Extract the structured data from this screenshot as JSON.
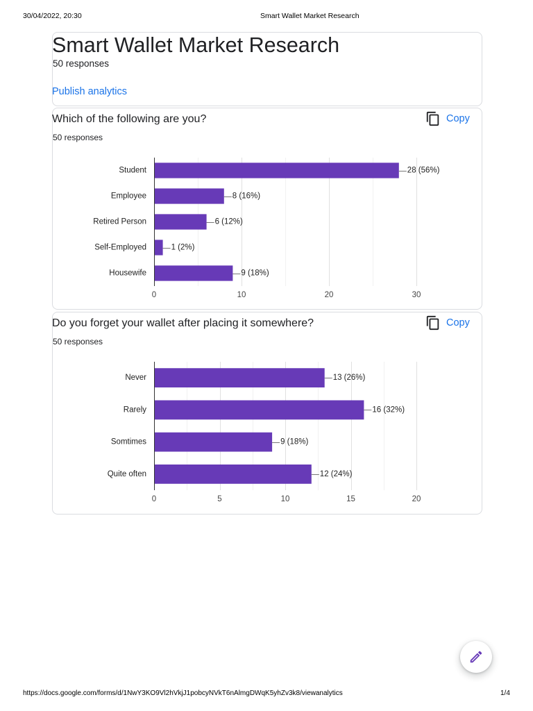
{
  "print_header": {
    "datetime": "30/04/2022, 20:30",
    "title": "Smart Wallet Market Research"
  },
  "summary": {
    "title": "Smart Wallet Market Research",
    "responses": "50 responses",
    "publish_label": "Publish analytics"
  },
  "questions": [
    {
      "responses": "50 responses",
      "copy_label": "Copy",
      "copy_icon": "copy-icon"
    },
    {
      "responses": "50 responses",
      "copy_label": "Copy",
      "copy_icon": "copy-icon"
    }
  ],
  "chart_data": [
    {
      "type": "bar",
      "orientation": "horizontal",
      "title": "Which of the following are you?",
      "categories": [
        "Student",
        "Employee",
        "Retired Person",
        "Self-Employed",
        "Housewife"
      ],
      "values": [
        28,
        8,
        6,
        1,
        9
      ],
      "data_labels": [
        "28 (56%)",
        "8 (16%)",
        "6 (12%)",
        "1 (2%)",
        "9 (18%)"
      ],
      "xlim": [
        0,
        30
      ],
      "xticks": [
        0,
        10,
        20,
        30
      ],
      "grid": true,
      "color": "#673ab7"
    },
    {
      "type": "bar",
      "orientation": "horizontal",
      "title": "Do you forget your wallet after placing it somewhere?",
      "categories": [
        "Never",
        "Rarely",
        "Somtimes",
        "Quite often"
      ],
      "values": [
        13,
        16,
        9,
        12
      ],
      "data_labels": [
        "13 (26%)",
        "16 (32%)",
        "9 (18%)",
        "12 (24%)"
      ],
      "xlim": [
        0,
        20
      ],
      "xticks": [
        0,
        5,
        10,
        15,
        20
      ],
      "grid": true,
      "color": "#673ab7"
    }
  ],
  "edit_button": {
    "icon": "pencil-icon",
    "color": "#673ab7"
  },
  "print_footer": {
    "url": "https://docs.google.com/forms/d/1NwY3KO9Vl2hVkjJ1pobcyNVkT6nAlmgDWqK5yhZv3k8/viewanalytics",
    "page": "1/4"
  },
  "colors": {
    "link": "#1a73e8",
    "bar": "#673ab7",
    "card_border": "#dadce0",
    "text": "#202124"
  }
}
